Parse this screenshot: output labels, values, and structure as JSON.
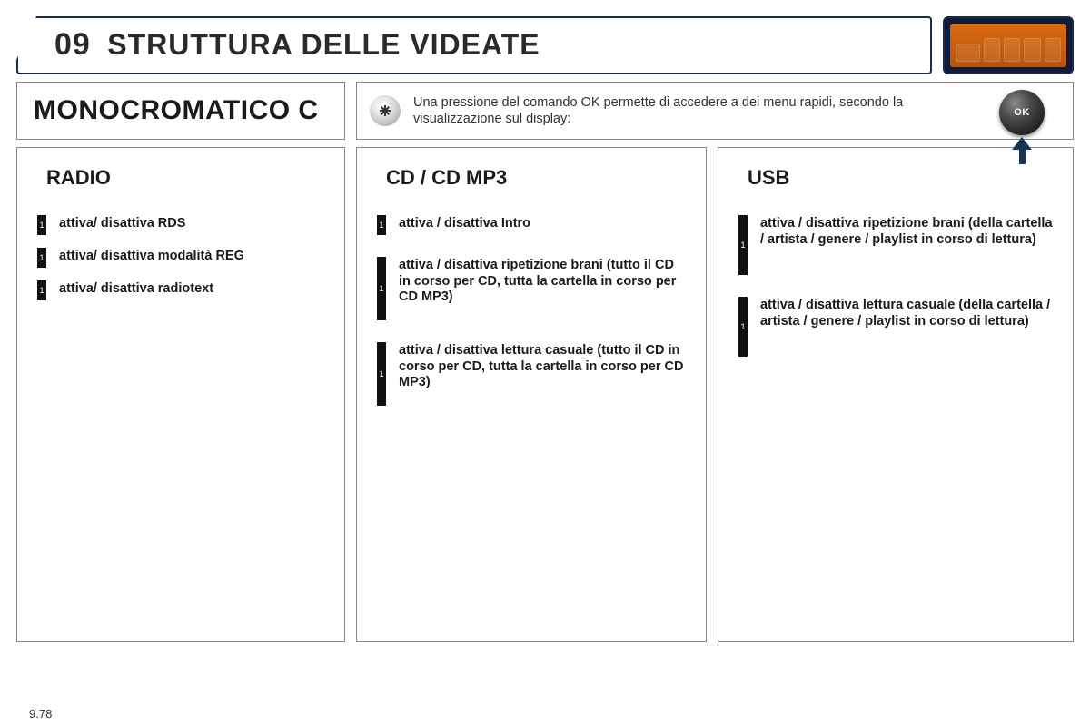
{
  "header": {
    "section_number": "09",
    "section_title": "STRUTTURA DELLE VIDEATE"
  },
  "mono_title": "MONOCROMATICO C",
  "note": {
    "text": "Una pressione del comando OK permette di accedere a dei menu rapidi, secondo la visualizzazione sul display:",
    "ok_label": "OK"
  },
  "columns": {
    "radio": {
      "heading": "RADIO",
      "items": [
        {
          "n": "1",
          "label": "attiva/ disattiva RDS"
        },
        {
          "n": "1",
          "label": "attiva/ disattiva modalità REG"
        },
        {
          "n": "1",
          "label": "attiva/ disattiva radiotext"
        }
      ]
    },
    "cd": {
      "heading": "CD / CD MP3",
      "items": [
        {
          "n": "1",
          "label": "attiva / disattiva Intro"
        },
        {
          "n": "1",
          "label": "attiva / disattiva ripetizione brani (tutto il CD in corso per CD, tutta la cartella in corso per CD MP3)"
        },
        {
          "n": "1",
          "label": "attiva / disattiva lettura casuale (tutto il CD in corso per CD, tutta la cartella in corso per CD MP3)"
        }
      ]
    },
    "usb": {
      "heading": "USB",
      "items": [
        {
          "n": "1",
          "label": "attiva / disattiva ripetizione brani (della cartella / artista / genere / playlist in corso di lettura)"
        },
        {
          "n": "1",
          "label": "attiva / disattiva lettura casuale (della cartella / artista / genere / playlist in corso di lettura)"
        }
      ]
    }
  },
  "page_number": "9.78",
  "colors": {
    "border_dark": "#1a2a4a",
    "border_gray": "#888888",
    "badge_bg": "#d96b10",
    "text": "#1a1a1a",
    "ok_arrow": "#17345b"
  }
}
